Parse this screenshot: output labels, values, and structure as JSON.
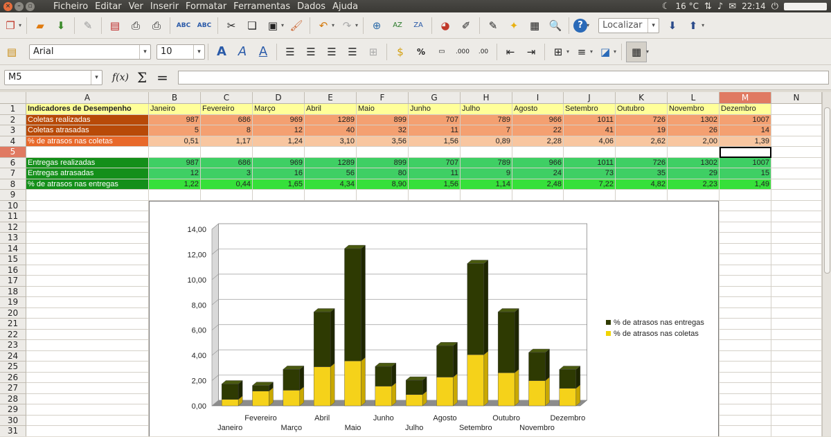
{
  "menu": [
    "Ficheiro",
    "Editar",
    "Ver",
    "Inserir",
    "Formatar",
    "Ferramentas",
    "Dados",
    "Ajuda"
  ],
  "tray": {
    "weather": "16 °C",
    "time": "22:14"
  },
  "toolbar": {
    "search_placeholder": "Localizar"
  },
  "format": {
    "font_name": "Arial",
    "font_size": "10"
  },
  "formula": {
    "cell_ref": "M5",
    "fx": "f(x)",
    "sigma": "Σ",
    "equals": "="
  },
  "columns": [
    "A",
    "B",
    "C",
    "D",
    "E",
    "F",
    "G",
    "H",
    "I",
    "J",
    "K",
    "L",
    "M",
    "N"
  ],
  "rows": [
    "1",
    "2",
    "3",
    "4",
    "5",
    "6",
    "7",
    "8",
    "9",
    "10",
    "11",
    "12",
    "13",
    "14",
    "15",
    "16",
    "17",
    "18",
    "19",
    "20",
    "21",
    "22",
    "23",
    "24",
    "25",
    "26",
    "27",
    "28",
    "29",
    "30",
    "31"
  ],
  "sheet": {
    "header": [
      "Indicadores de Desempenho",
      "Janeiro",
      "Fevereiro",
      "Março",
      "Abril",
      "Maio",
      "Junho",
      "Julho",
      "Agosto",
      "Setembro",
      "Outubro",
      "Novembro",
      "Dezembro"
    ],
    "rows": [
      {
        "label": "Coletas realizadas",
        "values": [
          "987",
          "686",
          "969",
          "1289",
          "899",
          "707",
          "789",
          "966",
          "1011",
          "726",
          "1302",
          "1007"
        ]
      },
      {
        "label": "Coletas atrasadas",
        "values": [
          "5",
          "8",
          "12",
          "40",
          "32",
          "11",
          "7",
          "22",
          "41",
          "19",
          "26",
          "14"
        ]
      },
      {
        "label": "% de atrasos nas coletas",
        "values": [
          "0,51",
          "1,17",
          "1,24",
          "3,10",
          "3,56",
          "1,56",
          "0,89",
          "2,28",
          "4,06",
          "2,62",
          "2,00",
          "1,39"
        ]
      },
      {
        "label": "",
        "values": [
          "",
          "",
          "",
          "",
          "",
          "",
          "",
          "",
          "",
          "",
          "",
          ""
        ]
      },
      {
        "label": "Entregas realizadas",
        "values": [
          "987",
          "686",
          "969",
          "1289",
          "899",
          "707",
          "789",
          "966",
          "1011",
          "726",
          "1302",
          "1007"
        ]
      },
      {
        "label": "Entregas atrasadas",
        "values": [
          "12",
          "3",
          "16",
          "56",
          "80",
          "11",
          "9",
          "24",
          "73",
          "35",
          "29",
          "15"
        ]
      },
      {
        "label": "% de atrasos nas entregas",
        "values": [
          "1,22",
          "0,44",
          "1,65",
          "4,34",
          "8,90",
          "1,56",
          "1,14",
          "2,48",
          "7,22",
          "4,82",
          "2,23",
          "1,49"
        ]
      }
    ]
  },
  "colors": {
    "coletas_label": "#b84a08",
    "coletas_fill": "#f4a071",
    "coletas_pct_label": "#e8692a",
    "coletas_pct_fill": "#f8c6a0",
    "entregas_label": "#148f1a",
    "entregas_fill": "#3fcf64",
    "entregas_pct_fill": "#36e03a",
    "header_fill": "#ffff99",
    "series_entregas": "#2f3a00",
    "series_coletas": "#f0d400"
  },
  "chart_data": {
    "type": "bar",
    "stacked": true,
    "categories": [
      "Janeiro",
      "Fevereiro",
      "Março",
      "Abril",
      "Maio",
      "Junho",
      "Julho",
      "Agosto",
      "Setembro",
      "Outubro",
      "Novembro",
      "Dezembro"
    ],
    "series": [
      {
        "name": "% de atrasos nas coletas",
        "values": [
          0.51,
          1.17,
          1.24,
          3.1,
          3.56,
          1.56,
          0.89,
          2.28,
          4.06,
          2.62,
          2.0,
          1.39
        ]
      },
      {
        "name": "% de atrasos nas entregas",
        "values": [
          1.22,
          0.44,
          1.65,
          4.34,
          8.9,
          1.56,
          1.14,
          2.48,
          7.22,
          4.82,
          2.23,
          1.49
        ]
      }
    ],
    "yticks": [
      "0,00",
      "2,00",
      "4,00",
      "6,00",
      "8,00",
      "10,00",
      "12,00",
      "14,00"
    ],
    "ylim": [
      0,
      14
    ],
    "legend": [
      "% de atrasos nas entregas",
      "% de atrasos nas coletas"
    ],
    "legend_position": "right",
    "grid": true
  }
}
